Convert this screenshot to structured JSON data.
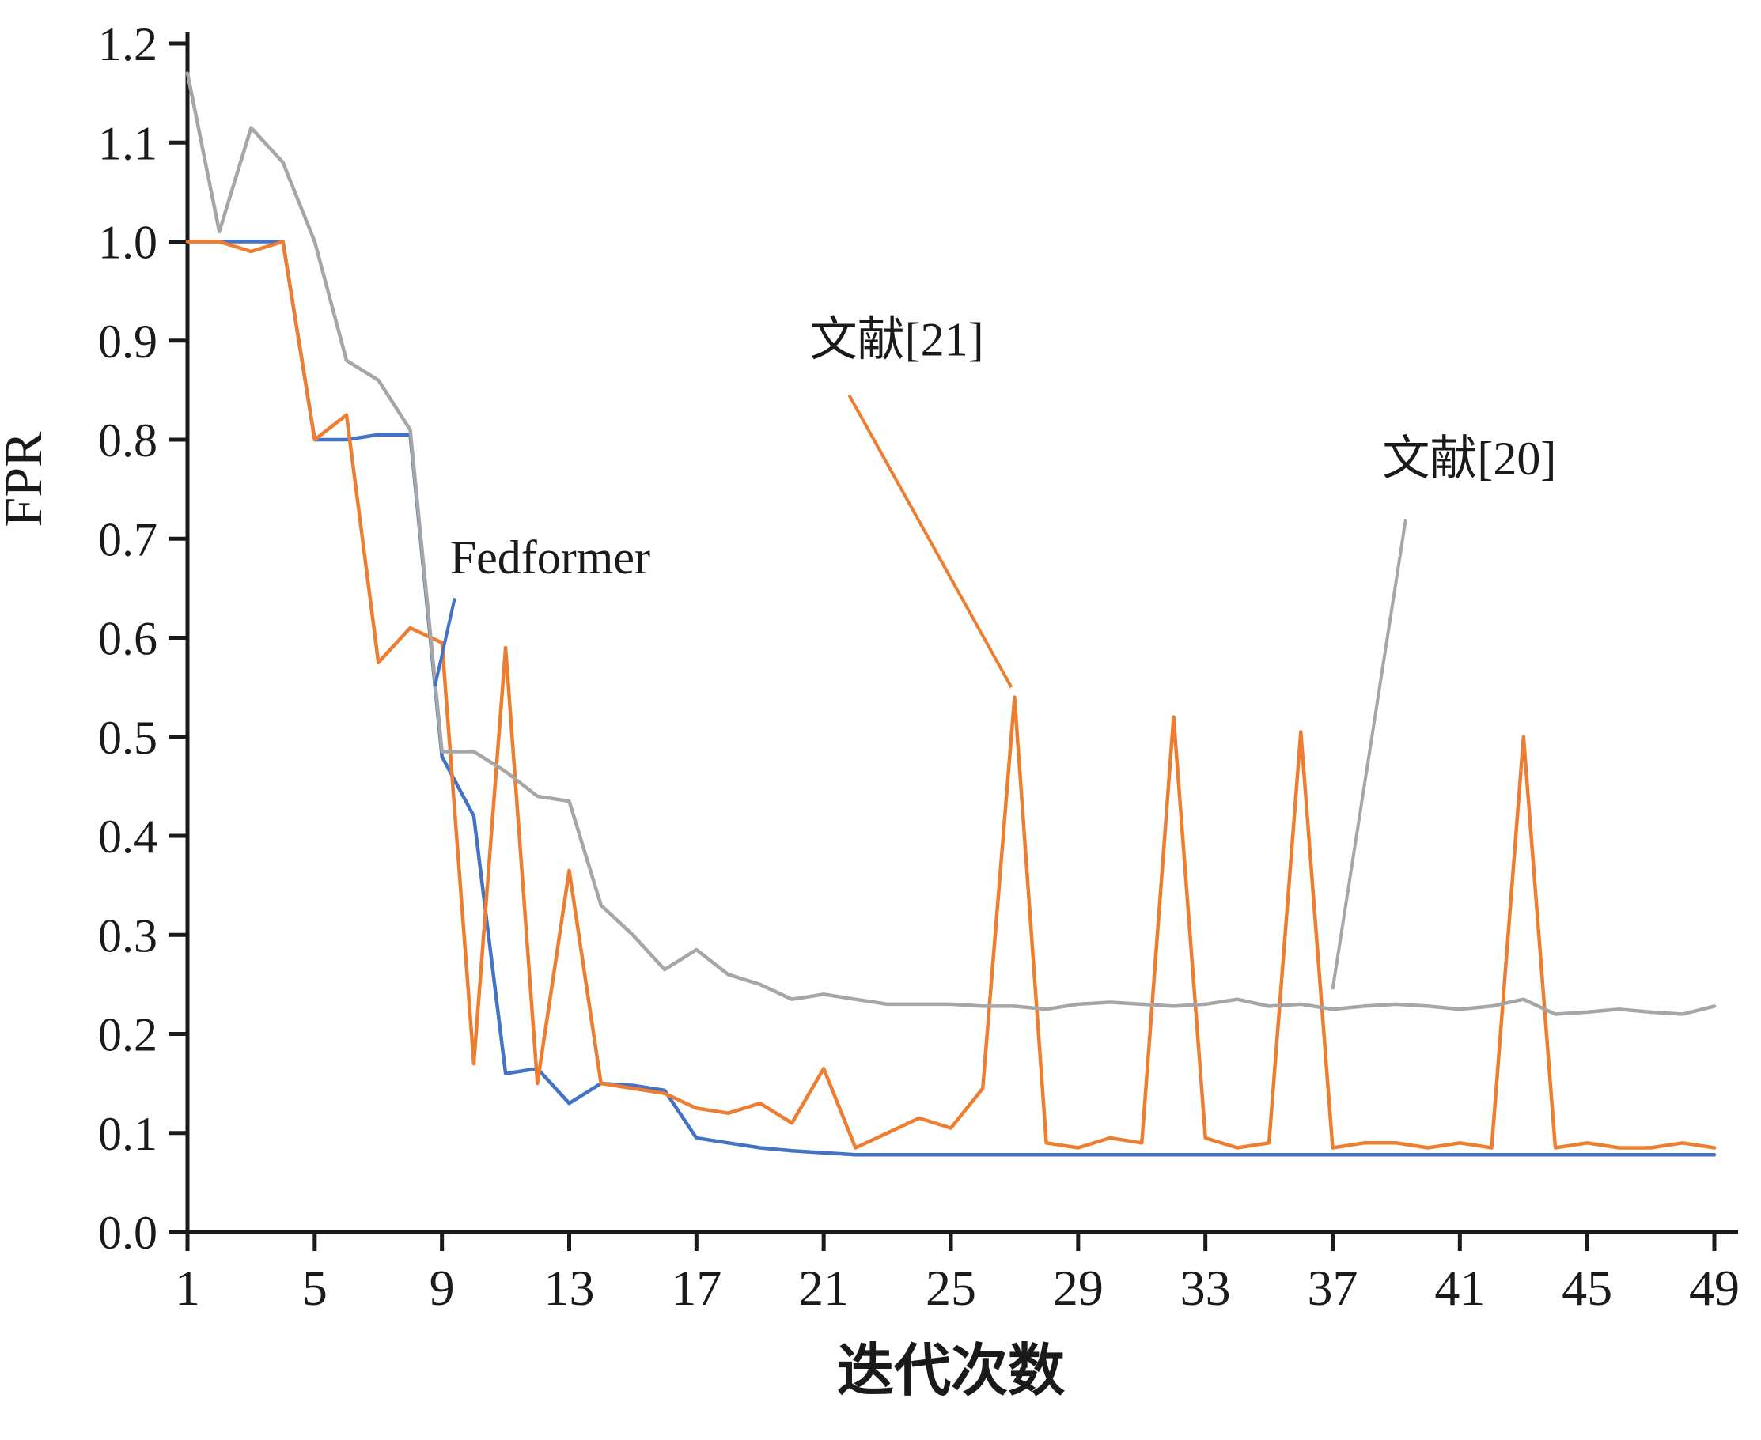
{
  "chart_data": {
    "type": "line",
    "title": "",
    "xlabel": "迭代次数",
    "ylabel": "FPR",
    "xlim": [
      1,
      49
    ],
    "ylim": [
      0,
      1.2
    ],
    "grid": false,
    "legend_position": "none (inline leader annotations)",
    "x_ticks": [
      1,
      5,
      9,
      13,
      17,
      21,
      25,
      29,
      33,
      37,
      41,
      45,
      49
    ],
    "y_ticks": [
      0.0,
      0.1,
      0.2,
      0.3,
      0.4,
      0.5,
      0.6,
      0.7,
      0.8,
      0.9,
      1.0,
      1.1,
      1.2
    ],
    "y_tick_labels": [
      "0.0",
      "0.1",
      "0.2",
      "0.3",
      "0.4",
      "0.5",
      "0.6",
      "0.7",
      "0.8",
      "0.9",
      "1.0",
      "1.1",
      "1.2"
    ],
    "x_start": 1,
    "series": [
      {
        "name": "Fedformer",
        "color": "#4472C4",
        "values": [
          1.0,
          1.0,
          1.0,
          1.0,
          0.8,
          0.8,
          0.805,
          0.805,
          0.48,
          0.42,
          0.16,
          0.165,
          0.13,
          0.15,
          0.148,
          0.143,
          0.095,
          0.09,
          0.085,
          0.082,
          0.08,
          0.078,
          0.078,
          0.078,
          0.078,
          0.078,
          0.078,
          0.078,
          0.078,
          0.078,
          0.078,
          0.078,
          0.078,
          0.078,
          0.078,
          0.078,
          0.078,
          0.078,
          0.078,
          0.078,
          0.078,
          0.078,
          0.078,
          0.078,
          0.078,
          0.078,
          0.078,
          0.078,
          0.078
        ]
      },
      {
        "name": "文献[21]",
        "color": "#ED7D31",
        "values": [
          1.0,
          1.0,
          0.99,
          1.0,
          0.8,
          0.825,
          0.575,
          0.61,
          0.595,
          0.17,
          0.59,
          0.15,
          0.365,
          0.15,
          0.145,
          0.14,
          0.125,
          0.12,
          0.13,
          0.11,
          0.165,
          0.085,
          0.1,
          0.115,
          0.105,
          0.145,
          0.54,
          0.09,
          0.085,
          0.095,
          0.09,
          0.52,
          0.095,
          0.085,
          0.09,
          0.505,
          0.085,
          0.09,
          0.09,
          0.085,
          0.09,
          0.085,
          0.5,
          0.085,
          0.09,
          0.085,
          0.085,
          0.09,
          0.085
        ]
      },
      {
        "name": "文献[20]",
        "color": "#A6A6A6",
        "values": [
          1.17,
          1.01,
          1.115,
          1.08,
          1.0,
          0.88,
          0.86,
          0.81,
          0.485,
          0.485,
          0.465,
          0.44,
          0.435,
          0.33,
          0.3,
          0.265,
          0.285,
          0.26,
          0.25,
          0.235,
          0.24,
          0.235,
          0.23,
          0.23,
          0.23,
          0.228,
          0.228,
          0.225,
          0.23,
          0.232,
          0.23,
          0.228,
          0.23,
          0.235,
          0.228,
          0.23,
          0.225,
          0.228,
          0.23,
          0.228,
          0.225,
          0.228,
          0.235,
          0.22,
          0.222,
          0.225,
          0.222,
          0.22,
          0.228
        ]
      }
    ],
    "annotations": [
      {
        "text": "Fedformer",
        "x": 9.25,
        "y": 0.665,
        "anchor": "start",
        "leader": {
          "x1": 9.4,
          "y1": 0.64,
          "x2": 8.78,
          "y2": 0.551,
          "color": "#4472C4"
        }
      },
      {
        "text": "文献[21]",
        "x": 23.3,
        "y": 0.885,
        "anchor": "middle",
        "leader": {
          "x1": 21.8,
          "y1": 0.845,
          "x2": 26.9,
          "y2": 0.55,
          "color": "#ED7D31"
        }
      },
      {
        "text": "文献[20]",
        "x": 41.3,
        "y": 0.765,
        "anchor": "middle",
        "leader": {
          "x1": 39.3,
          "y1": 0.72,
          "x2": 37.0,
          "y2": 0.245,
          "color": "#A6A6A6"
        }
      }
    ],
    "axis_color": "#1a1a1a"
  }
}
